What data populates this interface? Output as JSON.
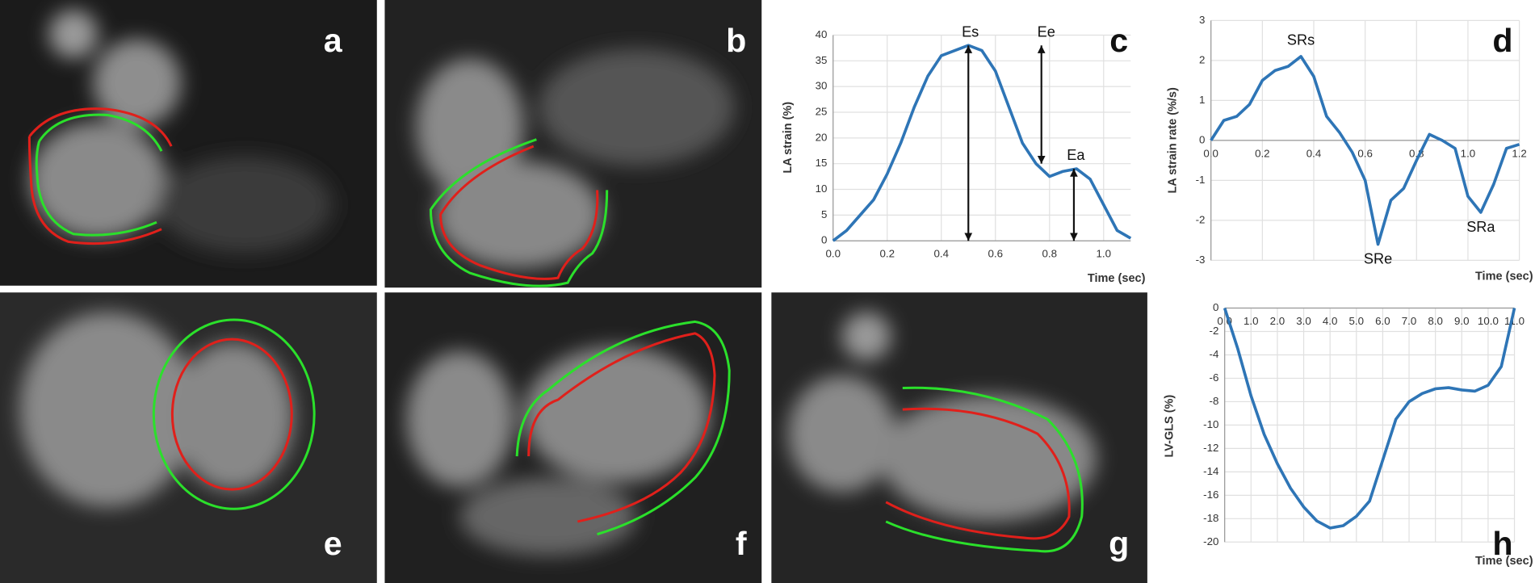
{
  "image_panels": [
    {
      "label": "a"
    },
    {
      "label": "b"
    },
    {
      "label": "e"
    },
    {
      "label": "f"
    },
    {
      "label": "g"
    }
  ],
  "chart_data": [
    {
      "type": "line",
      "panel_label": "c",
      "x_label": "Time (sec)",
      "y_label": "LA strain (%)",
      "color": "#2e75b6",
      "grid": true,
      "x": [
        0,
        0.05,
        0.1,
        0.15,
        0.2,
        0.25,
        0.3,
        0.35,
        0.4,
        0.45,
        0.5,
        0.55,
        0.6,
        0.65,
        0.7,
        0.75,
        0.8,
        0.85,
        0.9,
        0.95,
        1.0,
        1.05,
        1.1
      ],
      "values": [
        0,
        2,
        5,
        8,
        13,
        19,
        26,
        32,
        36,
        37,
        38,
        37,
        33,
        26,
        19,
        15,
        12.5,
        13.5,
        14,
        12,
        7,
        2,
        0.5
      ],
      "xlim": [
        0,
        1.1
      ],
      "ylim": [
        0,
        40
      ],
      "xticks": [
        {
          "value": 0,
          "label": "0.0"
        },
        {
          "value": 0.2,
          "label": "0.2"
        },
        {
          "value": 0.4,
          "label": "0.4"
        },
        {
          "value": 0.6,
          "label": "0.6"
        },
        {
          "value": 0.8,
          "label": "0.8"
        },
        {
          "value": 1,
          "label": "1.0"
        }
      ],
      "yticks": [
        0,
        5,
        10,
        15,
        20,
        25,
        30,
        35,
        40
      ],
      "annotations": [
        {
          "text": "Es",
          "x": 0.5,
          "y_from": 0,
          "y_to": 38
        },
        {
          "text": "Ee",
          "x": 0.77,
          "y_from": 15,
          "y_to": 38
        },
        {
          "text": "Ea",
          "x": 0.89,
          "y_from": 0,
          "y_to": 14
        }
      ]
    },
    {
      "type": "line",
      "panel_label": "d",
      "x_label": "Time (sec)",
      "y_label": "LA strain rate (%/s)",
      "color": "#2e75b6",
      "grid": true,
      "x": [
        0,
        0.05,
        0.1,
        0.15,
        0.2,
        0.25,
        0.3,
        0.35,
        0.4,
        0.45,
        0.5,
        0.55,
        0.6,
        0.65,
        0.7,
        0.75,
        0.8,
        0.85,
        0.9,
        0.95,
        1.0,
        1.05,
        1.1,
        1.15,
        1.2
      ],
      "values": [
        0,
        0.5,
        0.6,
        0.9,
        1.5,
        1.75,
        1.85,
        2.1,
        1.6,
        0.6,
        0.2,
        -0.3,
        -1.0,
        -2.6,
        -1.5,
        -1.2,
        -0.5,
        0.15,
        0,
        -0.2,
        -1.4,
        -1.8,
        -1.1,
        -0.2,
        -0.1
      ],
      "xlim": [
        0,
        1.2
      ],
      "ylim": [
        -3,
        3
      ],
      "xticks": [
        {
          "value": 0,
          "label": "0.0"
        },
        {
          "value": 0.2,
          "label": "0.2"
        },
        {
          "value": 0.4,
          "label": "0.4"
        },
        {
          "value": 0.6,
          "label": "0.6"
        },
        {
          "value": 0.8,
          "label": "0.8"
        },
        {
          "value": 1,
          "label": "1.0"
        },
        {
          "value": 1.2,
          "label": "1.2"
        }
      ],
      "yticks": [
        -3,
        -2,
        -1,
        0,
        1,
        2,
        3
      ],
      "annotations": [
        {
          "text": "SRs",
          "x": 0.35,
          "y": 2.1
        },
        {
          "text": "SRe",
          "x": 0.65,
          "y": -2.6
        },
        {
          "text": "SRa",
          "x": 1.05,
          "y": -1.8
        }
      ]
    },
    {
      "type": "line",
      "panel_label": "h",
      "x_label": "Time (sec)",
      "y_label": "LV-GLS (%)",
      "color": "#2e75b6",
      "grid": true,
      "x": [
        0,
        0.5,
        1,
        1.5,
        2,
        2.5,
        3,
        3.5,
        4,
        4.5,
        5,
        5.5,
        6,
        6.5,
        7,
        7.5,
        8,
        8.5,
        9,
        9.5,
        10,
        10.5,
        11
      ],
      "values": [
        0,
        -3.5,
        -7.5,
        -10.8,
        -13.3,
        -15.4,
        -17,
        -18.2,
        -18.8,
        -18.6,
        -17.8,
        -16.5,
        -13,
        -9.5,
        -8,
        -7.3,
        -6.9,
        -6.8,
        -7,
        -7.1,
        -6.6,
        -5,
        0
      ],
      "xlim": [
        0,
        11
      ],
      "ylim": [
        -20,
        0
      ],
      "xticks": [
        {
          "value": 0,
          "label": "0.0"
        },
        {
          "value": 1,
          "label": "1.0"
        },
        {
          "value": 2,
          "label": "2.0"
        },
        {
          "value": 3,
          "label": "3.0"
        },
        {
          "value": 4,
          "label": "4.0"
        },
        {
          "value": 5,
          "label": "5.0"
        },
        {
          "value": 6,
          "label": "6.0"
        },
        {
          "value": 7,
          "label": "7.0"
        },
        {
          "value": 8,
          "label": "8.0"
        },
        {
          "value": 9,
          "label": "9.0"
        },
        {
          "value": 10,
          "label": "10.0"
        },
        {
          "value": 11,
          "label": "11.0"
        }
      ],
      "yticks": [
        -20,
        -18,
        -16,
        -14,
        -12,
        -10,
        -8,
        -6,
        -4,
        -2,
        0
      ]
    }
  ]
}
